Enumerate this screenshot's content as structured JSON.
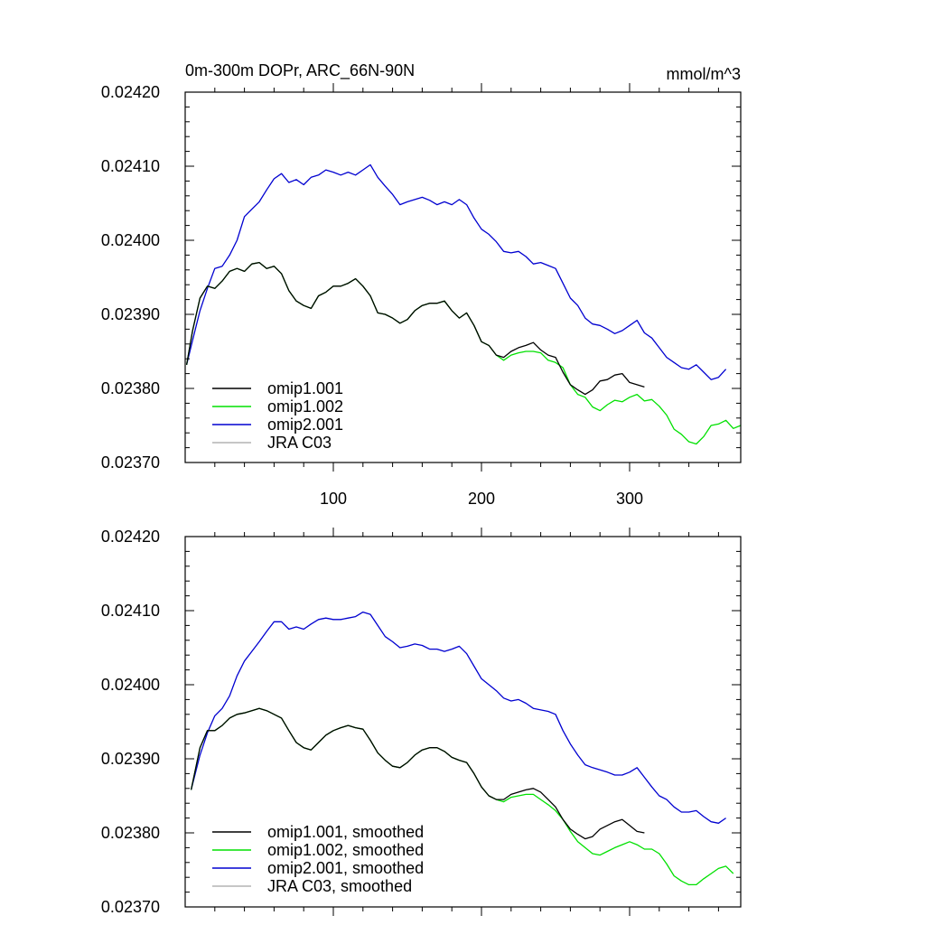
{
  "title_left": "0m-300m DOPr, ARC_66N-90N",
  "title_right": "mmol/m^3",
  "colors": {
    "omip1_001": "#000000",
    "omip1_002": "#00e000",
    "omip2_001": "#0000d0",
    "jra_c03": "#b4b4b4",
    "axis": "#000000"
  },
  "chart_data": [
    {
      "type": "line",
      "name": "raw",
      "xlim": [
        0,
        375
      ],
      "ylim": [
        0.0237,
        0.0242
      ],
      "xticks": [
        100,
        200,
        300
      ],
      "xtick_labels": [
        "100",
        "200",
        "300"
      ],
      "yticks": [
        0.0237,
        0.0238,
        0.0239,
        0.024,
        0.0241,
        0.0242
      ],
      "ytick_labels": [
        "0.02370",
        "0.02380",
        "0.02390",
        "0.02400",
        "0.02410",
        "0.02420"
      ],
      "legend": [
        "omip1.001",
        "omip1.002",
        "omip2.001",
        "JRA C03"
      ],
      "legend_position": "bottom-left",
      "series": [
        {
          "name": "omip2.001",
          "color_key": "omip2_001",
          "x": [
            1,
            5,
            10,
            15,
            20,
            25,
            30,
            35,
            40,
            45,
            50,
            55,
            60,
            65,
            70,
            75,
            80,
            85,
            90,
            95,
            100,
            105,
            110,
            115,
            120,
            125,
            130,
            135,
            140,
            145,
            150,
            155,
            160,
            165,
            170,
            175,
            180,
            185,
            190,
            195,
            200,
            205,
            210,
            215,
            220,
            225,
            230,
            235,
            240,
            245,
            250,
            255,
            260,
            265,
            270,
            275,
            280,
            285,
            290,
            295,
            300,
            305,
            310,
            315,
            320,
            325,
            330,
            335,
            340,
            345,
            350,
            355,
            360,
            365
          ],
          "y": [
            0.023832,
            0.023865,
            0.023905,
            0.023935,
            0.023962,
            0.023965,
            0.02398,
            0.024,
            0.024032,
            0.024042,
            0.024052,
            0.024068,
            0.024083,
            0.02409,
            0.024078,
            0.024082,
            0.024075,
            0.024085,
            0.024088,
            0.024095,
            0.024092,
            0.024088,
            0.024092,
            0.024088,
            0.024095,
            0.024102,
            0.024085,
            0.024073,
            0.024062,
            0.024048,
            0.024052,
            0.024055,
            0.024058,
            0.024054,
            0.024048,
            0.024052,
            0.024048,
            0.024055,
            0.024048,
            0.02403,
            0.024015,
            0.024008,
            0.023998,
            0.023985,
            0.023983,
            0.023985,
            0.023978,
            0.023968,
            0.02397,
            0.023966,
            0.023962,
            0.023942,
            0.023922,
            0.023912,
            0.023895,
            0.023887,
            0.023885,
            0.02388,
            0.023874,
            0.023878,
            0.023885,
            0.023892,
            0.023875,
            0.023868,
            0.023855,
            0.023842,
            0.023835,
            0.023828,
            0.023826,
            0.023832,
            0.023822,
            0.023812,
            0.023815,
            0.023826
          ]
        },
        {
          "name": "omip1.002",
          "color_key": "omip1_002",
          "x": [
            1,
            5,
            10,
            15,
            20,
            25,
            30,
            35,
            40,
            45,
            50,
            55,
            60,
            65,
            70,
            75,
            80,
            85,
            90,
            95,
            100,
            105,
            110,
            115,
            120,
            125,
            130,
            135,
            140,
            145,
            150,
            155,
            160,
            165,
            170,
            175,
            180,
            185,
            190,
            195,
            200,
            205,
            210,
            215,
            220,
            225,
            230,
            235,
            240,
            245,
            250,
            255,
            260,
            265,
            270,
            275,
            280,
            285,
            290,
            295,
            300,
            305,
            310,
            315,
            320,
            325,
            330,
            335,
            340,
            345,
            350,
            355,
            360,
            365,
            370,
            375
          ],
          "y": [
            0.023832,
            0.023878,
            0.023922,
            0.023938,
            0.023935,
            0.023945,
            0.023958,
            0.023962,
            0.023958,
            0.023968,
            0.02397,
            0.023962,
            0.023965,
            0.023955,
            0.023932,
            0.023918,
            0.023912,
            0.023908,
            0.023925,
            0.02393,
            0.023938,
            0.023938,
            0.023942,
            0.023948,
            0.023938,
            0.023925,
            0.023902,
            0.0239,
            0.023895,
            0.023888,
            0.023893,
            0.023905,
            0.023912,
            0.023915,
            0.023915,
            0.023918,
            0.023905,
            0.023895,
            0.023902,
            0.023885,
            0.023863,
            0.023858,
            0.023845,
            0.023838,
            0.023845,
            0.023848,
            0.02385,
            0.02385,
            0.023848,
            0.023838,
            0.023835,
            0.023828,
            0.023805,
            0.023792,
            0.023788,
            0.023775,
            0.02377,
            0.023778,
            0.023784,
            0.023782,
            0.023788,
            0.023792,
            0.023783,
            0.023785,
            0.023776,
            0.023764,
            0.023745,
            0.023738,
            0.023728,
            0.023725,
            0.023735,
            0.02375,
            0.023752,
            0.023757,
            0.023746,
            0.02375
          ]
        },
        {
          "name": "omip1.001",
          "color_key": "omip1_001",
          "x": [
            1,
            5,
            10,
            15,
            20,
            25,
            30,
            35,
            40,
            45,
            50,
            55,
            60,
            65,
            70,
            75,
            80,
            85,
            90,
            95,
            100,
            105,
            110,
            115,
            120,
            125,
            130,
            135,
            140,
            145,
            150,
            155,
            160,
            165,
            170,
            175,
            180,
            185,
            190,
            195,
            200,
            205,
            210,
            215,
            220,
            225,
            230,
            235,
            240,
            245,
            250,
            255,
            260,
            265,
            270,
            275,
            280,
            285,
            290,
            295,
            300,
            305,
            310
          ],
          "y": [
            0.023832,
            0.023878,
            0.023922,
            0.023938,
            0.023935,
            0.023945,
            0.023958,
            0.023962,
            0.023958,
            0.023968,
            0.02397,
            0.023962,
            0.023965,
            0.023955,
            0.023932,
            0.023918,
            0.023912,
            0.023908,
            0.023925,
            0.02393,
            0.023938,
            0.023938,
            0.023942,
            0.023948,
            0.023938,
            0.023925,
            0.023902,
            0.0239,
            0.023895,
            0.023888,
            0.023893,
            0.023905,
            0.023912,
            0.023915,
            0.023915,
            0.023918,
            0.023905,
            0.023895,
            0.023902,
            0.023885,
            0.023863,
            0.023858,
            0.023845,
            0.023842,
            0.02385,
            0.023855,
            0.023858,
            0.023862,
            0.023852,
            0.023845,
            0.023842,
            0.023822,
            0.023805,
            0.023798,
            0.023792,
            0.023798,
            0.02381,
            0.023812,
            0.023818,
            0.02382,
            0.023808,
            0.023805,
            0.023802
          ]
        }
      ]
    },
    {
      "type": "line",
      "name": "smoothed",
      "xlim": [
        0,
        375
      ],
      "ylim": [
        0.0237,
        0.0242
      ],
      "xticks": [
        100,
        200,
        300
      ],
      "xtick_labels": [
        "",
        "",
        ""
      ],
      "yticks": [
        0.0237,
        0.0238,
        0.0239,
        0.024,
        0.0241,
        0.0242
      ],
      "ytick_labels": [
        "0.02370",
        "0.02380",
        "0.02390",
        "0.02400",
        "0.02410",
        "0.02420"
      ],
      "legend": [
        "omip1.001, smoothed",
        "omip1.002, smoothed",
        "omip2.001, smoothed",
        "JRA C03, smoothed"
      ],
      "legend_position": "bottom-left",
      "series": [
        {
          "name": "omip2.001, smoothed",
          "color_key": "omip2_001",
          "x": [
            4,
            10,
            15,
            20,
            25,
            30,
            35,
            40,
            45,
            50,
            55,
            60,
            65,
            70,
            75,
            80,
            85,
            90,
            95,
            100,
            105,
            110,
            115,
            120,
            125,
            130,
            135,
            140,
            145,
            150,
            155,
            160,
            165,
            170,
            175,
            180,
            185,
            190,
            195,
            200,
            205,
            210,
            215,
            220,
            225,
            230,
            235,
            240,
            245,
            250,
            255,
            260,
            265,
            270,
            275,
            280,
            285,
            290,
            295,
            300,
            305,
            310,
            315,
            320,
            325,
            330,
            335,
            340,
            345,
            350,
            355,
            360,
            365
          ],
          "y": [
            0.023858,
            0.023905,
            0.023935,
            0.023958,
            0.023968,
            0.023985,
            0.024012,
            0.024032,
            0.024045,
            0.024058,
            0.024072,
            0.024085,
            0.024085,
            0.024075,
            0.024078,
            0.024075,
            0.024082,
            0.024088,
            0.02409,
            0.024088,
            0.024088,
            0.02409,
            0.024092,
            0.024098,
            0.024095,
            0.02408,
            0.024065,
            0.024058,
            0.02405,
            0.024052,
            0.024055,
            0.024053,
            0.024048,
            0.024048,
            0.024045,
            0.024048,
            0.024052,
            0.024042,
            0.024025,
            0.024008,
            0.024,
            0.023992,
            0.023982,
            0.023978,
            0.02398,
            0.023975,
            0.023968,
            0.023966,
            0.023964,
            0.02396,
            0.023938,
            0.02392,
            0.023905,
            0.023892,
            0.023888,
            0.023885,
            0.023882,
            0.023878,
            0.023878,
            0.023882,
            0.023888,
            0.023875,
            0.023862,
            0.02385,
            0.023845,
            0.023835,
            0.023828,
            0.023828,
            0.02383,
            0.023822,
            0.023815,
            0.023813,
            0.02382
          ]
        },
        {
          "name": "omip1.002, smoothed",
          "color_key": "omip1_002",
          "x": [
            4,
            10,
            15,
            20,
            25,
            30,
            35,
            40,
            45,
            50,
            55,
            60,
            65,
            70,
            75,
            80,
            85,
            90,
            95,
            100,
            105,
            110,
            115,
            120,
            125,
            130,
            135,
            140,
            145,
            150,
            155,
            160,
            165,
            170,
            175,
            180,
            185,
            190,
            195,
            200,
            205,
            210,
            215,
            220,
            225,
            230,
            235,
            240,
            245,
            250,
            255,
            260,
            265,
            270,
            275,
            280,
            285,
            290,
            295,
            300,
            305,
            310,
            315,
            320,
            325,
            330,
            335,
            340,
            345,
            350,
            355,
            360,
            365,
            370
          ],
          "y": [
            0.023858,
            0.023915,
            0.023938,
            0.023938,
            0.023945,
            0.023955,
            0.02396,
            0.023962,
            0.023965,
            0.023968,
            0.023965,
            0.02396,
            0.023955,
            0.023938,
            0.023922,
            0.023915,
            0.023912,
            0.023922,
            0.023932,
            0.023938,
            0.023942,
            0.023945,
            0.023942,
            0.02394,
            0.023925,
            0.023908,
            0.023898,
            0.02389,
            0.023888,
            0.023895,
            0.023905,
            0.023912,
            0.023915,
            0.023915,
            0.02391,
            0.023902,
            0.023898,
            0.023895,
            0.02388,
            0.023862,
            0.02385,
            0.023845,
            0.023842,
            0.023848,
            0.02385,
            0.023852,
            0.023852,
            0.023845,
            0.023838,
            0.02383,
            0.023818,
            0.023802,
            0.023788,
            0.02378,
            0.023772,
            0.02377,
            0.023775,
            0.02378,
            0.023784,
            0.023788,
            0.023784,
            0.023778,
            0.023778,
            0.023772,
            0.023758,
            0.023742,
            0.023735,
            0.02373,
            0.02373,
            0.023738,
            0.023745,
            0.023752,
            0.023755,
            0.023745
          ]
        },
        {
          "name": "omip1.001, smoothed",
          "color_key": "omip1_001",
          "x": [
            4,
            10,
            15,
            20,
            25,
            30,
            35,
            40,
            45,
            50,
            55,
            60,
            65,
            70,
            75,
            80,
            85,
            90,
            95,
            100,
            105,
            110,
            115,
            120,
            125,
            130,
            135,
            140,
            145,
            150,
            155,
            160,
            165,
            170,
            175,
            180,
            185,
            190,
            195,
            200,
            205,
            210,
            215,
            220,
            225,
            230,
            235,
            240,
            245,
            250,
            255,
            260,
            265,
            270,
            275,
            280,
            285,
            290,
            295,
            300,
            305,
            310
          ],
          "y": [
            0.023858,
            0.023915,
            0.023938,
            0.023938,
            0.023945,
            0.023955,
            0.02396,
            0.023962,
            0.023965,
            0.023968,
            0.023965,
            0.02396,
            0.023955,
            0.023938,
            0.023922,
            0.023915,
            0.023912,
            0.023922,
            0.023932,
            0.023938,
            0.023942,
            0.023945,
            0.023942,
            0.02394,
            0.023925,
            0.023908,
            0.023898,
            0.02389,
            0.023888,
            0.023895,
            0.023905,
            0.023912,
            0.023915,
            0.023915,
            0.02391,
            0.023902,
            0.023898,
            0.023895,
            0.02388,
            0.023862,
            0.02385,
            0.023845,
            0.023845,
            0.023852,
            0.023855,
            0.023858,
            0.02386,
            0.023855,
            0.023845,
            0.023835,
            0.023818,
            0.023805,
            0.023798,
            0.023792,
            0.023795,
            0.023805,
            0.02381,
            0.023815,
            0.023818,
            0.02381,
            0.023802,
            0.0238
          ]
        }
      ]
    }
  ]
}
